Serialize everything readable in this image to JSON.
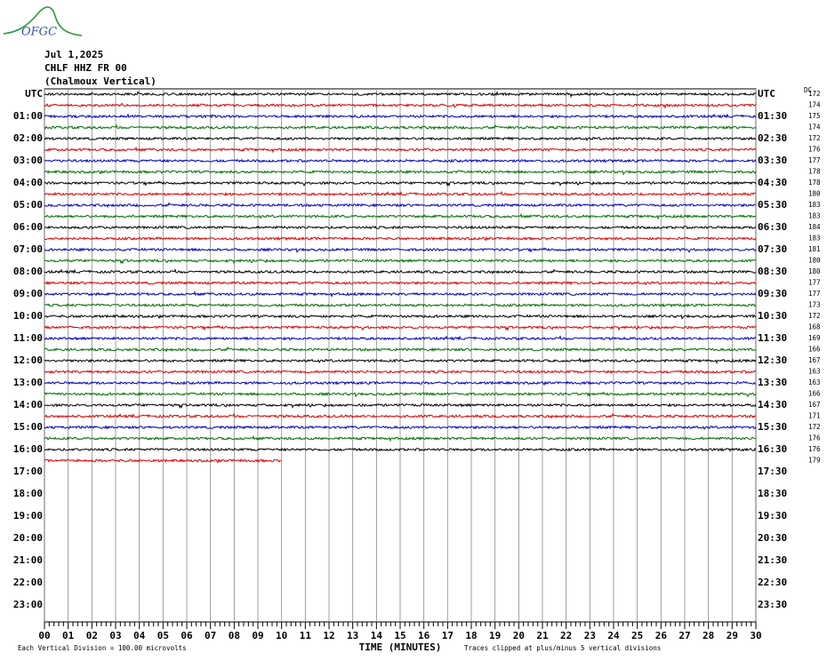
{
  "logo": "OFGC",
  "header": {
    "date": "Jul 1,2025",
    "station": "CHLF HHZ FR 00",
    "location": "(Chalmoux Vertical)"
  },
  "left_labels": [
    "UTC",
    "01:00",
    "02:00",
    "03:00",
    "04:00",
    "05:00",
    "06:00",
    "07:00",
    "08:00",
    "09:00",
    "10:00",
    "11:00",
    "12:00",
    "13:00",
    "14:00",
    "15:00",
    "16:00",
    "17:00",
    "18:00",
    "19:00",
    "20:00",
    "21:00",
    "22:00",
    "23:00"
  ],
  "right_labels": [
    "UTC",
    "01:30",
    "02:30",
    "03:30",
    "04:30",
    "05:30",
    "06:30",
    "07:30",
    "08:30",
    "09:30",
    "10:30",
    "11:30",
    "12:30",
    "13:30",
    "14:30",
    "15:30",
    "16:30",
    "17:30",
    "18:30",
    "19:30",
    "20:30",
    "21:30",
    "22:30",
    "23:30"
  ],
  "dc": {
    "title": "DC",
    "values": [
      172,
      174,
      175,
      174,
      172,
      176,
      177,
      178,
      178,
      180,
      183,
      183,
      184,
      183,
      181,
      180,
      180,
      177,
      177,
      173,
      172,
      168,
      169,
      166,
      167,
      163,
      163,
      166,
      167,
      171,
      172,
      176,
      176,
      179
    ]
  },
  "x_axis": {
    "ticks": [
      "00",
      "01",
      "02",
      "03",
      "04",
      "05",
      "06",
      "07",
      "08",
      "09",
      "10",
      "11",
      "12",
      "13",
      "14",
      "15",
      "16",
      "17",
      "18",
      "19",
      "20",
      "21",
      "22",
      "23",
      "24",
      "25",
      "26",
      "27",
      "28",
      "29",
      "30"
    ],
    "title": "TIME (MINUTES)"
  },
  "footer": {
    "scale": "Each Vertical Division =  100.00 microvolts",
    "clip": "Traces clipped at plus/minus 5 vertical divisions"
  },
  "trace_colors": [
    "#000000",
    "#dd0000",
    "#0000c0",
    "#007000"
  ]
}
